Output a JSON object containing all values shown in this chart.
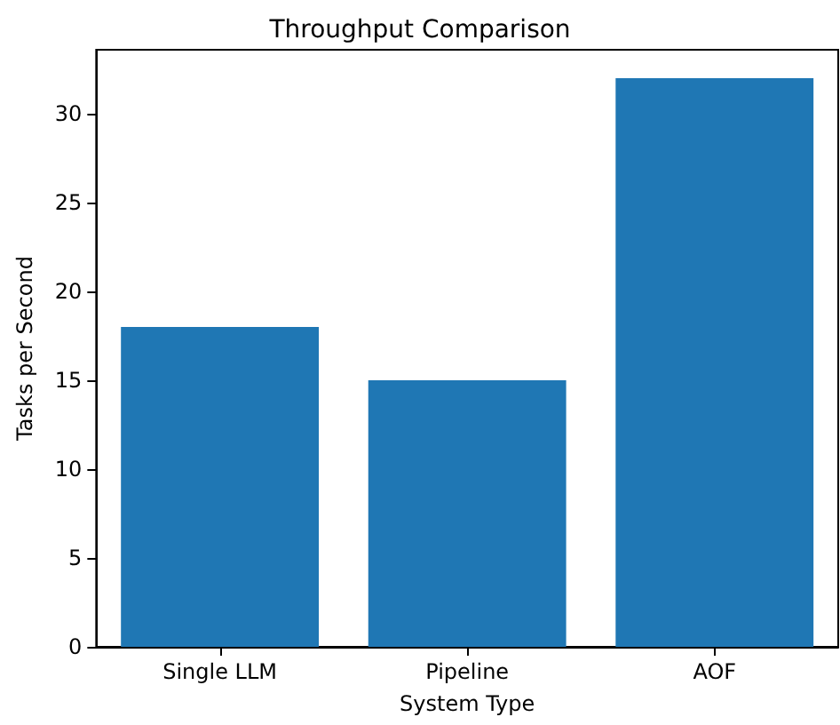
{
  "chart_data": {
    "type": "bar",
    "title": "Throughput Comparison",
    "xlabel": "System Type",
    "ylabel": "Tasks per Second",
    "categories": [
      "Single LLM",
      "Pipeline",
      "AOF"
    ],
    "values": [
      18,
      15,
      32
    ],
    "color": "#1f77b4",
    "ylim": [
      0,
      33.6
    ],
    "yticks": [
      0,
      5,
      10,
      15,
      20,
      25,
      30
    ],
    "grid": false
  }
}
